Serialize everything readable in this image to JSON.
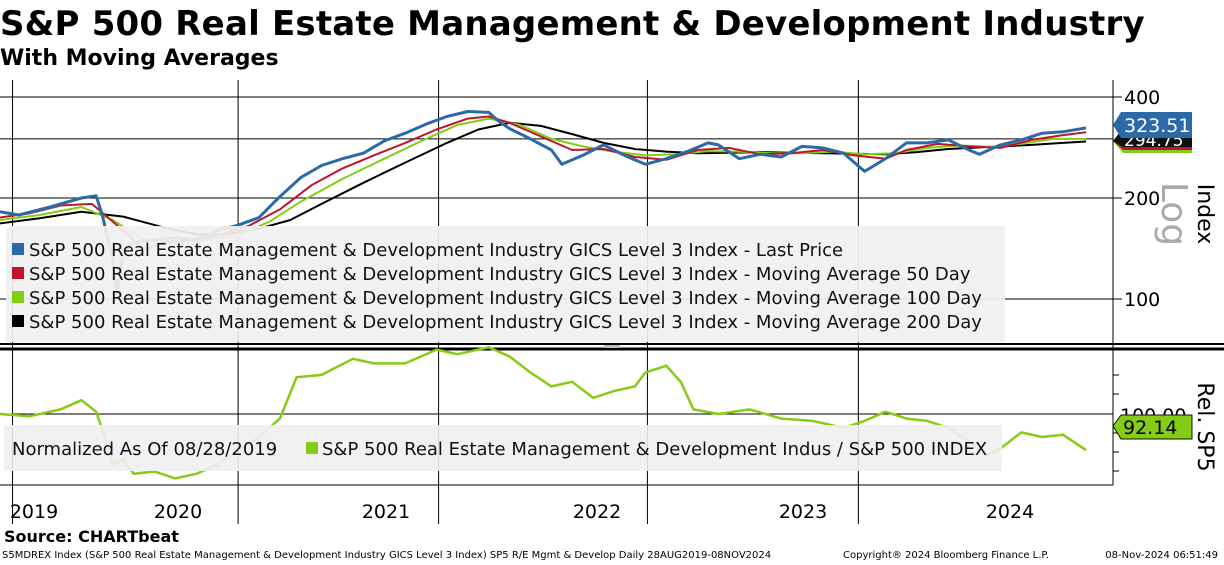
{
  "title": "S&P 500 Real Estate Management & Development Industry",
  "subtitle": "With Moving Averages",
  "source": "Source: CHARTbeat",
  "footer": {
    "left": "S5MDREX Index (S&P 500 Real Estate Management & Development Industry GICS Level 3 Index) SP5 R/E Mgmt & Develop  Daily 28AUG2019-08NOV2024",
    "mid": "Copyright® 2024 Bloomberg Finance L.P.",
    "right": "08-Nov-2024 06:51:49"
  },
  "colors": {
    "last_price": "#2b6aa6",
    "ma50": "#c0142c",
    "ma100": "#84cc16",
    "ma200": "#000000",
    "price_badge": "#2b6aa6",
    "rel_badge": "#84cc16"
  },
  "chart_data": [
    {
      "type": "line",
      "title": "S&P 500 Real Estate Management & Development Industry",
      "ylabel": "Index",
      "scale": "Log",
      "ylim": [
        70,
        420
      ],
      "yticks": [
        "400",
        "200",
        "100"
      ],
      "x_categories": [
        "2019",
        "2020",
        "2021",
        "2022",
        "2023",
        "2024"
      ],
      "price_labels": {
        "last": "323.51",
        "ma_hidden": "294.75"
      },
      "series": [
        {
          "name": "S&P 500 Real Estate Management & Development Industry GICS Level 3 Index - Last Price",
          "key": "last_price",
          "values": [
            [
              2019.66,
              182
            ],
            [
              2019.75,
              178
            ],
            [
              2019.9,
              188
            ],
            [
              2020.05,
              200
            ],
            [
              2020.12,
              203
            ],
            [
              2020.15,
              178
            ],
            [
              2020.2,
              130
            ],
            [
              2020.22,
              104
            ],
            [
              2020.25,
              138
            ],
            [
              2020.3,
              148
            ],
            [
              2020.4,
              150
            ],
            [
              2020.5,
              152
            ],
            [
              2020.6,
              150
            ],
            [
              2020.7,
              160
            ],
            [
              2020.8,
              166
            ],
            [
              2020.9,
              175
            ],
            [
              2021.0,
              202
            ],
            [
              2021.1,
              230
            ],
            [
              2021.2,
              250
            ],
            [
              2021.3,
              262
            ],
            [
              2021.4,
              272
            ],
            [
              2021.5,
              296
            ],
            [
              2021.6,
              312
            ],
            [
              2021.7,
              332
            ],
            [
              2021.8,
              350
            ],
            [
              2021.9,
              362
            ],
            [
              2022.0,
              360
            ],
            [
              2022.05,
              338
            ],
            [
              2022.1,
              322
            ],
            [
              2022.2,
              300
            ],
            [
              2022.3,
              278
            ],
            [
              2022.35,
              252
            ],
            [
              2022.45,
              268
            ],
            [
              2022.55,
              288
            ],
            [
              2022.65,
              268
            ],
            [
              2022.75,
              252
            ],
            [
              2022.85,
              262
            ],
            [
              2022.95,
              275
            ],
            [
              2023.05,
              292
            ],
            [
              2023.1,
              288
            ],
            [
              2023.2,
              262
            ],
            [
              2023.3,
              270
            ],
            [
              2023.4,
              265
            ],
            [
              2023.5,
              285
            ],
            [
              2023.6,
              282
            ],
            [
              2023.7,
              272
            ],
            [
              2023.8,
              240
            ],
            [
              2023.9,
              262
            ],
            [
              2024.0,
              292
            ],
            [
              2024.1,
              292
            ],
            [
              2024.2,
              298
            ],
            [
              2024.3,
              278
            ],
            [
              2024.35,
              270
            ],
            [
              2024.45,
              288
            ],
            [
              2024.55,
              298
            ],
            [
              2024.65,
              312
            ],
            [
              2024.75,
              315
            ],
            [
              2024.86,
              323.51
            ]
          ]
        },
        {
          "name": "S&P 500 Real Estate Management & Development Industry GICS Level 3 Index - Moving Average 50 Day",
          "key": "ma50",
          "values": [
            [
              2019.66,
              175
            ],
            [
              2019.8,
              180
            ],
            [
              2019.95,
              190
            ],
            [
              2020.1,
              192
            ],
            [
              2020.25,
              160
            ],
            [
              2020.35,
              140
            ],
            [
              2020.45,
              148
            ],
            [
              2020.6,
              150
            ],
            [
              2020.7,
              155
            ],
            [
              2020.85,
              165
            ],
            [
              2021.0,
              185
            ],
            [
              2021.15,
              218
            ],
            [
              2021.3,
              245
            ],
            [
              2021.45,
              268
            ],
            [
              2021.6,
              292
            ],
            [
              2021.75,
              320
            ],
            [
              2021.9,
              345
            ],
            [
              2022.0,
              350
            ],
            [
              2022.1,
              335
            ],
            [
              2022.25,
              305
            ],
            [
              2022.4,
              278
            ],
            [
              2022.55,
              280
            ],
            [
              2022.7,
              265
            ],
            [
              2022.85,
              260
            ],
            [
              2023.0,
              278
            ],
            [
              2023.15,
              282
            ],
            [
              2023.3,
              270
            ],
            [
              2023.45,
              272
            ],
            [
              2023.6,
              278
            ],
            [
              2023.75,
              268
            ],
            [
              2023.9,
              262
            ],
            [
              2024.0,
              278
            ],
            [
              2024.15,
              290
            ],
            [
              2024.3,
              285
            ],
            [
              2024.45,
              282
            ],
            [
              2024.6,
              298
            ],
            [
              2024.75,
              308
            ],
            [
              2024.86,
              314
            ]
          ]
        },
        {
          "name": "S&P 500 Real Estate Management & Development Industry GICS Level 3 Index - Moving Average 100 Day",
          "key": "ma100",
          "values": [
            [
              2019.66,
              172
            ],
            [
              2019.85,
              178
            ],
            [
              2020.05,
              188
            ],
            [
              2020.2,
              172
            ],
            [
              2020.35,
              150
            ],
            [
              2020.5,
              146
            ],
            [
              2020.65,
              150
            ],
            [
              2020.8,
              155
            ],
            [
              2020.95,
              170
            ],
            [
              2021.1,
              195
            ],
            [
              2021.3,
              228
            ],
            [
              2021.5,
              262
            ],
            [
              2021.7,
              300
            ],
            [
              2021.85,
              330
            ],
            [
              2022.0,
              345
            ],
            [
              2022.15,
              330
            ],
            [
              2022.3,
              300
            ],
            [
              2022.45,
              285
            ],
            [
              2022.6,
              275
            ],
            [
              2022.75,
              268
            ],
            [
              2022.9,
              270
            ],
            [
              2023.05,
              276
            ],
            [
              2023.2,
              275
            ],
            [
              2023.35,
              272
            ],
            [
              2023.5,
              272
            ],
            [
              2023.65,
              275
            ],
            [
              2023.8,
              270
            ],
            [
              2023.95,
              272
            ],
            [
              2024.1,
              282
            ],
            [
              2024.25,
              287
            ],
            [
              2024.4,
              284
            ],
            [
              2024.55,
              290
            ],
            [
              2024.7,
              300
            ],
            [
              2024.86,
              300
            ]
          ]
        },
        {
          "name": "S&P 500 Real Estate Management & Development Industry GICS Level 3 Index - Moving Average 200 Day",
          "key": "ma200",
          "values": [
            [
              2019.66,
              168
            ],
            [
              2019.85,
              174
            ],
            [
              2020.05,
              182
            ],
            [
              2020.25,
              176
            ],
            [
              2020.45,
              163
            ],
            [
              2020.6,
              156
            ],
            [
              2020.75,
              156
            ],
            [
              2020.9,
              162
            ],
            [
              2021.05,
              172
            ],
            [
              2021.2,
              192
            ],
            [
              2021.4,
              222
            ],
            [
              2021.6,
              255
            ],
            [
              2021.8,
              292
            ],
            [
              2021.95,
              320
            ],
            [
              2022.1,
              335
            ],
            [
              2022.25,
              328
            ],
            [
              2022.4,
              310
            ],
            [
              2022.55,
              292
            ],
            [
              2022.7,
              280
            ],
            [
              2022.85,
              275
            ],
            [
              2023.0,
              272
            ],
            [
              2023.15,
              273
            ],
            [
              2023.3,
              274
            ],
            [
              2023.45,
              273
            ],
            [
              2023.6,
              272
            ],
            [
              2023.75,
              271
            ],
            [
              2023.9,
              270
            ],
            [
              2024.05,
              274
            ],
            [
              2024.2,
              280
            ],
            [
              2024.4,
              284
            ],
            [
              2024.6,
              288
            ],
            [
              2024.75,
              292
            ],
            [
              2024.86,
              294.75
            ]
          ]
        }
      ]
    },
    {
      "type": "line",
      "title": "Normalized As Of 08/28/2019",
      "ylabel": "Rel. SP5",
      "yticks": [
        "100.00"
      ],
      "ylim": [
        80,
        114
      ],
      "last_label": "92.14",
      "series": [
        {
          "name": "S&P 500 Real Estate Management & Development Indus / S&P 500 INDEX",
          "key": "ma100",
          "values": [
            [
              2019.66,
              100
            ],
            [
              2019.8,
              99.5
            ],
            [
              2019.95,
              101
            ],
            [
              2020.05,
              103
            ],
            [
              2020.12,
              100.5
            ],
            [
              2020.17,
              94
            ],
            [
              2020.2,
              89
            ],
            [
              2020.25,
              90
            ],
            [
              2020.3,
              87
            ],
            [
              2020.4,
              87.5
            ],
            [
              2020.5,
              86
            ],
            [
              2020.6,
              87
            ],
            [
              2020.7,
              89
            ],
            [
              2020.8,
              92
            ],
            [
              2020.9,
              95
            ],
            [
              2021.0,
              99
            ],
            [
              2021.08,
              108
            ],
            [
              2021.2,
              108.5
            ],
            [
              2021.35,
              112
            ],
            [
              2021.45,
              111
            ],
            [
              2021.6,
              111
            ],
            [
              2021.75,
              114
            ],
            [
              2021.85,
              113
            ],
            [
              2022.0,
              114.5
            ],
            [
              2022.1,
              112.5
            ],
            [
              2022.2,
              109
            ],
            [
              2022.3,
              106
            ],
            [
              2022.4,
              107
            ],
            [
              2022.5,
              103.5
            ],
            [
              2022.6,
              105
            ],
            [
              2022.7,
              106
            ],
            [
              2022.75,
              109
            ],
            [
              2022.85,
              110.5
            ],
            [
              2022.92,
              107
            ],
            [
              2022.98,
              101
            ],
            [
              2023.1,
              100
            ],
            [
              2023.25,
              101
            ],
            [
              2023.4,
              99
            ],
            [
              2023.55,
              98.5
            ],
            [
              2023.7,
              97
            ],
            [
              2023.8,
              98.5
            ],
            [
              2023.9,
              100.5
            ],
            [
              2024.0,
              99
            ],
            [
              2024.1,
              98.5
            ],
            [
              2024.2,
              97
            ],
            [
              2024.3,
              94
            ],
            [
              2024.38,
              91
            ],
            [
              2024.45,
              92.5
            ],
            [
              2024.55,
              96
            ],
            [
              2024.65,
              95
            ],
            [
              2024.75,
              95.5
            ],
            [
              2024.86,
              92.14
            ]
          ]
        }
      ]
    }
  ]
}
